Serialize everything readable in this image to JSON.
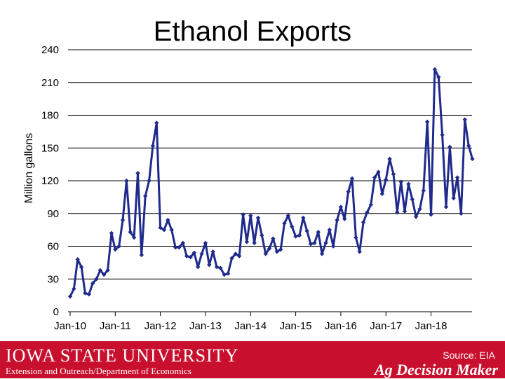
{
  "chart_data": {
    "type": "line",
    "title": "Ethanol Exports",
    "ylabel": "Million gallons",
    "xlabel": "",
    "ylim": [
      0,
      240
    ],
    "yticks": [
      "0",
      "30",
      "60",
      "90",
      "120",
      "150",
      "180",
      "210",
      "240"
    ],
    "xtick_labels": [
      "Jan-10",
      "Jan-11",
      "Jan-12",
      "Jan-13",
      "Jan-14",
      "Jan-15",
      "Jan-16",
      "Jan-17",
      "Jan-18"
    ],
    "x_start": "Jan-10",
    "x_interval": "monthly",
    "grid": "horizontal",
    "line_color": "#1f2a8c",
    "values": [
      14,
      21,
      48,
      41,
      17,
      16,
      26,
      30,
      38,
      34,
      38,
      72,
      57,
      60,
      84,
      120,
      73,
      68,
      127,
      52,
      106,
      120,
      152,
      173,
      77,
      75,
      84,
      75,
      59,
      59,
      63,
      51,
      50,
      54,
      41,
      53,
      63,
      43,
      55,
      41,
      40,
      34,
      35,
      49,
      53,
      51,
      89,
      64,
      88,
      63,
      86,
      70,
      53,
      58,
      67,
      55,
      57,
      81,
      88,
      78,
      69,
      70,
      86,
      74,
      62,
      63,
      73,
      53,
      63,
      75,
      60,
      84,
      96,
      85,
      110,
      122,
      68,
      55,
      82,
      91,
      98,
      123,
      128,
      108,
      121,
      140,
      126,
      91,
      119,
      92,
      117,
      103,
      87,
      94,
      111,
      174,
      89,
      222,
      215,
      162,
      96,
      151,
      104,
      123,
      90,
      176,
      152,
      140
    ]
  },
  "footer": {
    "university": "IOWA STATE UNIVERSITY",
    "extension": "Extension and Outreach/Department of Economics",
    "source": "Source: EIA",
    "brand": "Ag Decision Maker",
    "background": "#c8102e"
  }
}
